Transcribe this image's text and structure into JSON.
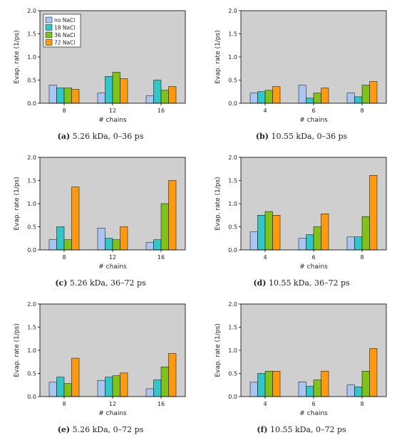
{
  "legend_labels": [
    "no NaCl",
    "18 NaCl",
    "36 NaCl",
    "72 NaCl"
  ],
  "colors": [
    "#a9c6f2",
    "#33c6c6",
    "#80c21a",
    "#ff9a10"
  ],
  "chart_data": [
    {
      "type": "bar",
      "caption_label": "(a)",
      "caption_text": "5.26 kDa, 0–36 ps",
      "xlabel": "# chains",
      "ylabel": "Evap. rate (1/ps)",
      "ylim": [
        0,
        2.0
      ],
      "yticks": [
        "0.0",
        "0.5",
        "1.0",
        "1.5",
        "2.0"
      ],
      "categories": [
        "8",
        "12",
        "16"
      ],
      "legend": "top-left",
      "series": [
        {
          "name": "no NaCl",
          "values": [
            0.39,
            0.22,
            0.16
          ]
        },
        {
          "name": "18 NaCl",
          "values": [
            0.33,
            0.58,
            0.5
          ]
        },
        {
          "name": "36 NaCl",
          "values": [
            0.33,
            0.67,
            0.28
          ]
        },
        {
          "name": "72 NaCl",
          "values": [
            0.3,
            0.53,
            0.36
          ]
        }
      ]
    },
    {
      "type": "bar",
      "caption_label": "(b)",
      "caption_text": "10.55 kDa, 0–36 ps",
      "xlabel": "# chains",
      "ylabel": "Evap. rate (1/ps)",
      "ylim": [
        0,
        2.0
      ],
      "yticks": [
        "0.0",
        "0.5",
        "1.0",
        "1.5",
        "2.0"
      ],
      "categories": [
        "4",
        "6",
        "8"
      ],
      "series": [
        {
          "name": "no NaCl",
          "values": [
            0.22,
            0.39,
            0.22
          ]
        },
        {
          "name": "18 NaCl",
          "values": [
            0.25,
            0.11,
            0.14
          ]
        },
        {
          "name": "36 NaCl",
          "values": [
            0.28,
            0.22,
            0.39
          ]
        },
        {
          "name": "72 NaCl",
          "values": [
            0.36,
            0.33,
            0.47
          ]
        }
      ]
    },
    {
      "type": "bar",
      "caption_label": "(c)",
      "caption_text": "5.26 kDa, 36–72 ps",
      "xlabel": "# chains",
      "ylabel": "Evap. rate (1/ps)",
      "ylim": [
        0,
        2.0
      ],
      "yticks": [
        "0.0",
        "0.5",
        "1.0",
        "1.5",
        "2.0"
      ],
      "categories": [
        "8",
        "12",
        "16"
      ],
      "series": [
        {
          "name": "no NaCl",
          "values": [
            0.22,
            0.47,
            0.16
          ]
        },
        {
          "name": "18 NaCl",
          "values": [
            0.5,
            0.25,
            0.22
          ]
        },
        {
          "name": "36 NaCl",
          "values": [
            0.22,
            0.22,
            1.0
          ]
        },
        {
          "name": "72 NaCl",
          "values": [
            1.36,
            0.5,
            1.5
          ]
        }
      ]
    },
    {
      "type": "bar",
      "caption_label": "(d)",
      "caption_text": "10.55 kDa, 36–72 ps",
      "xlabel": "# chains",
      "ylabel": "Evap. rate (1/ps)",
      "ylim": [
        0,
        2.0
      ],
      "yticks": [
        "0.0",
        "0.5",
        "1.0",
        "1.5",
        "2.0"
      ],
      "categories": [
        "4",
        "6",
        "8"
      ],
      "series": [
        {
          "name": "no NaCl",
          "values": [
            0.39,
            0.25,
            0.28
          ]
        },
        {
          "name": "18 NaCl",
          "values": [
            0.75,
            0.33,
            0.28
          ]
        },
        {
          "name": "36 NaCl",
          "values": [
            0.83,
            0.5,
            0.72
          ]
        },
        {
          "name": "72 NaCl",
          "values": [
            0.75,
            0.78,
            1.61
          ]
        }
      ]
    },
    {
      "type": "bar",
      "caption_label": "(e)",
      "caption_text": "5.26 kDa, 0–72 ps",
      "xlabel": "# chains",
      "ylabel": "Evap. rate (1/ps)",
      "ylim": [
        0,
        2.0
      ],
      "yticks": [
        "0.0",
        "0.5",
        "1.0",
        "1.5",
        "2.0"
      ],
      "categories": [
        "8",
        "12",
        "16"
      ],
      "series": [
        {
          "name": "no NaCl",
          "values": [
            0.31,
            0.35,
            0.17
          ]
        },
        {
          "name": "18 NaCl",
          "values": [
            0.42,
            0.42,
            0.36
          ]
        },
        {
          "name": "36 NaCl",
          "values": [
            0.28,
            0.45,
            0.64
          ]
        },
        {
          "name": "72 NaCl",
          "values": [
            0.83,
            0.51,
            0.93
          ]
        }
      ]
    },
    {
      "type": "bar",
      "caption_label": "(f)",
      "caption_text": "10.55 kDa, 0–72 ps",
      "xlabel": "# chains",
      "ylabel": "Evap. rate (1/ps)",
      "ylim": [
        0,
        2.0
      ],
      "yticks": [
        "0.0",
        "0.5",
        "1.0",
        "1.5",
        "2.0"
      ],
      "categories": [
        "4",
        "6",
        "8"
      ],
      "series": [
        {
          "name": "no NaCl",
          "values": [
            0.31,
            0.32,
            0.25
          ]
        },
        {
          "name": "18 NaCl",
          "values": [
            0.5,
            0.22,
            0.21
          ]
        },
        {
          "name": "36 NaCl",
          "values": [
            0.55,
            0.36,
            0.55
          ]
        },
        {
          "name": "72 NaCl",
          "values": [
            0.55,
            0.55,
            1.04
          ]
        }
      ]
    }
  ]
}
